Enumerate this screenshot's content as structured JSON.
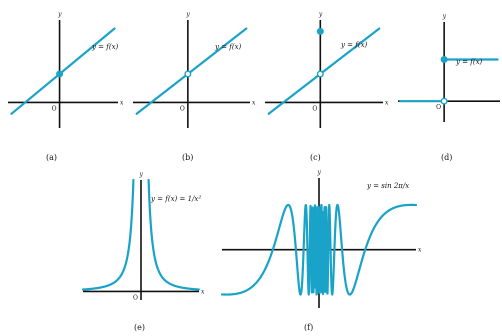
{
  "figure": {
    "curve_color": "#1aa3c8",
    "axis_color": "#111111"
  },
  "chart_data": [
    {
      "id": "a",
      "type": "line",
      "caption": "(a)",
      "curve_label": "y = f(x)",
      "xlabel": "x",
      "ylabel": "y",
      "origin_label": "O",
      "x": [
        -1.4,
        1.6
      ],
      "y": [
        -0.4,
        2.6
      ],
      "xlim": [
        -1.5,
        1.7
      ],
      "ylim": [
        -0.9,
        2.9
      ],
      "markers": [
        {
          "x": 0,
          "y": 1,
          "style": "filled"
        }
      ]
    },
    {
      "id": "b",
      "type": "line",
      "caption": "(b)",
      "curve_label": "y = f(x)",
      "xlabel": "x",
      "ylabel": "y",
      "origin_label": "O",
      "x": [
        -1.4,
        1.6
      ],
      "y": [
        -0.4,
        2.6
      ],
      "xlim": [
        -1.5,
        1.7
      ],
      "ylim": [
        -0.9,
        2.9
      ],
      "markers": [
        {
          "x": 0,
          "y": 1,
          "style": "open"
        }
      ]
    },
    {
      "id": "c",
      "type": "line",
      "caption": "(c)",
      "curve_label": "y = f(x)",
      "xlabel": "x",
      "ylabel": "y",
      "origin_label": "O",
      "x": [
        -1.4,
        1.6
      ],
      "y": [
        -0.4,
        2.6
      ],
      "xlim": [
        -1.5,
        1.7
      ],
      "ylim": [
        -0.9,
        2.9
      ],
      "markers": [
        {
          "x": 0,
          "y": 1,
          "style": "open"
        },
        {
          "x": 0,
          "y": 2.5,
          "style": "filled"
        }
      ]
    },
    {
      "id": "d",
      "type": "line",
      "caption": "(d)",
      "curve_label": "y = f(x)",
      "xlabel": "x",
      "ylabel": "y",
      "origin_label": "O",
      "segments": [
        {
          "x": [
            -1.8,
            0
          ],
          "y": [
            0,
            0
          ]
        },
        {
          "x": [
            0,
            2.2
          ],
          "y": [
            1,
            1
          ]
        }
      ],
      "xlim": [
        -1.9,
        2.3
      ],
      "ylim": [
        -0.5,
        1.9
      ],
      "markers": [
        {
          "x": 0,
          "y": 0,
          "style": "open"
        },
        {
          "x": 0,
          "y": 1,
          "style": "filled"
        }
      ]
    },
    {
      "id": "e",
      "type": "line",
      "caption": "(e)",
      "curve_label": "y = f(x) = 1/x²",
      "xlabel": "x",
      "ylabel": "y",
      "origin_label": "O",
      "function": "1/x^2",
      "xlim": [
        -3,
        3
      ],
      "ylim": [
        -0.5,
        6.5
      ]
    },
    {
      "id": "f",
      "type": "line",
      "caption": "(f)",
      "curve_label": "y = sin 2π/x",
      "xlabel": "x",
      "ylabel": "y",
      "function": "sin(2*pi/x)",
      "xlim": [
        -4.2,
        4.2
      ],
      "ylim": [
        -1.3,
        1.6
      ]
    }
  ]
}
